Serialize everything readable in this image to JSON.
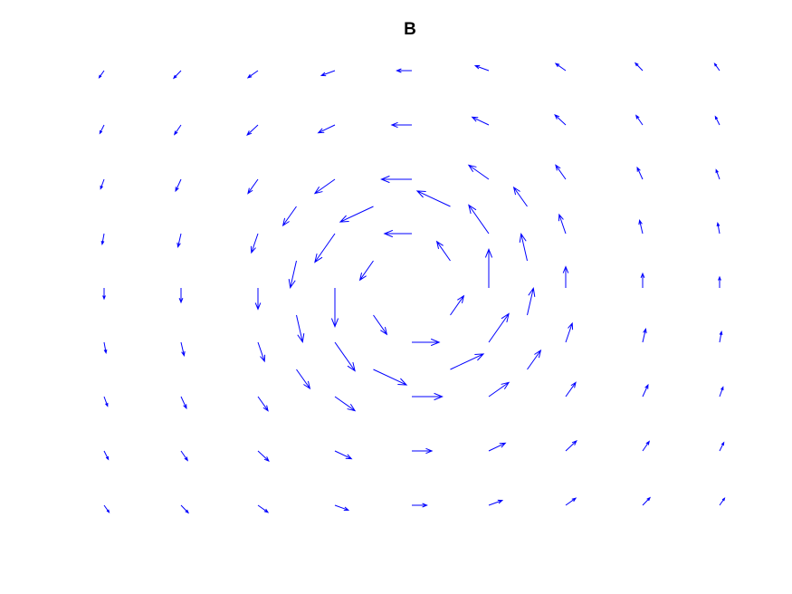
{
  "chart_data": {
    "type": "quiver",
    "title": "B",
    "color": "#0000ff",
    "xlim": [
      -9,
      9
    ],
    "ylim": [
      -10,
      10
    ],
    "x": [
      -8,
      -6,
      -4,
      -2,
      0,
      2,
      4,
      6,
      8,
      -8,
      -6,
      -4,
      -2,
      0,
      2,
      4,
      6,
      8,
      -8,
      -6,
      -4,
      -2,
      0,
      2,
      4,
      6,
      8,
      -8,
      -6,
      -4,
      -2,
      0,
      2,
      4,
      6,
      8,
      -8,
      -6,
      -4,
      -2,
      2,
      4,
      6,
      8,
      -8,
      -6,
      -4,
      -2,
      0,
      2,
      4,
      6,
      8,
      -8,
      -6,
      -4,
      -2,
      0,
      2,
      4,
      6,
      8,
      -8,
      -6,
      -4,
      -2,
      0,
      2,
      4,
      6,
      8,
      -8,
      -6,
      -4,
      -2,
      0,
      2,
      4,
      6,
      8,
      -3,
      -1,
      1,
      3,
      -3,
      -1,
      1,
      3,
      -3,
      -1,
      1,
      3,
      -3,
      -1,
      1,
      3
    ],
    "y": [
      8,
      8,
      8,
      8,
      8,
      8,
      8,
      8,
      8,
      6,
      6,
      6,
      6,
      6,
      6,
      6,
      6,
      6,
      4,
      4,
      4,
      4,
      4,
      4,
      4,
      4,
      4,
      2,
      2,
      2,
      2,
      2,
      2,
      2,
      2,
      2,
      0,
      0,
      0,
      0,
      0,
      0,
      0,
      0,
      -2,
      -2,
      -2,
      -2,
      -2,
      -2,
      -2,
      -2,
      -2,
      -4,
      -4,
      -4,
      -4,
      -4,
      -4,
      -4,
      -4,
      -4,
      -6,
      -6,
      -6,
      -6,
      -6,
      -6,
      -6,
      -6,
      -6,
      -8,
      -8,
      -8,
      -8,
      -8,
      -8,
      -8,
      -8,
      -8,
      3,
      3,
      3,
      3,
      1,
      1,
      1,
      1,
      -1,
      -1,
      -1,
      -1,
      -3,
      -3,
      -3,
      -3
    ],
    "u": [
      -0.13,
      -0.19,
      -0.26,
      -0.35,
      -0.39,
      -0.35,
      -0.26,
      -0.19,
      -0.13,
      -0.11,
      -0.17,
      -0.28,
      -0.43,
      -0.52,
      -0.43,
      -0.28,
      -0.17,
      -0.11,
      -0.09,
      -0.14,
      -0.26,
      -0.52,
      -0.79,
      -0.52,
      -0.26,
      -0.14,
      -0.09,
      -0.05,
      -0.08,
      -0.17,
      -0.52,
      -0.71,
      -0.52,
      -0.17,
      -0.08,
      -0.05,
      0,
      0,
      0,
      0,
      0,
      0,
      0,
      0,
      0.05,
      0.08,
      0.17,
      0.52,
      0.71,
      0.52,
      0.17,
      0.08,
      0.05,
      0.09,
      0.14,
      0.26,
      0.52,
      0.79,
      0.52,
      0.26,
      0.14,
      0.09,
      0.11,
      0.17,
      0.28,
      0.43,
      0.52,
      0.43,
      0.28,
      0.17,
      0.11,
      0.13,
      0.19,
      0.26,
      0.35,
      0.39,
      0.35,
      0.26,
      0.19,
      0.13,
      -0.35,
      -0.86,
      -0.86,
      -0.35,
      -0.16,
      -0.35,
      -0.35,
      -0.16,
      0.16,
      0.35,
      0.35,
      0.16,
      0.35,
      0.86,
      0.86,
      0.35
    ],
    "v": [
      -0.26,
      -0.28,
      -0.26,
      -0.18,
      0,
      0.18,
      0.26,
      0.28,
      0.26,
      -0.31,
      -0.35,
      -0.37,
      -0.29,
      0,
      0.29,
      0.37,
      0.35,
      0.31,
      -0.35,
      -0.43,
      -0.52,
      -0.52,
      0,
      0.52,
      0.52,
      0.43,
      0.35,
      -0.39,
      -0.49,
      -0.7,
      -1.05,
      0,
      1.05,
      0.7,
      0.49,
      0.39,
      -0.4,
      -0.53,
      -0.78,
      -1.42,
      1.42,
      0.78,
      0.53,
      0.4,
      -0.39,
      -0.49,
      -0.7,
      -1.05,
      0,
      1.05,
      0.7,
      0.49,
      0.39,
      -0.35,
      -0.43,
      -0.52,
      -0.52,
      0,
      0.52,
      0.52,
      0.43,
      0.35,
      -0.31,
      -0.35,
      -0.37,
      -0.29,
      0,
      0.29,
      0.37,
      0.35,
      0.31,
      -0.26,
      -0.28,
      -0.26,
      -0.18,
      0,
      0.18,
      0.26,
      0.28,
      0.26,
      -0.7,
      -0.57,
      0.57,
      0.7,
      -0.99,
      -0.71,
      0.71,
      0.99,
      -0.99,
      -0.71,
      0.71,
      0.99,
      -0.7,
      -0.57,
      0.57,
      0.7
    ]
  }
}
